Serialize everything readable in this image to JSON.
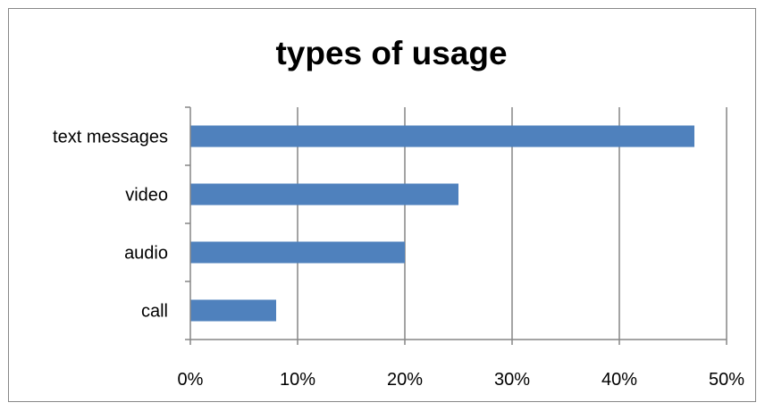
{
  "chart_data": {
    "type": "bar",
    "orientation": "horizontal",
    "title": "types of usage",
    "categories": [
      "text messages",
      "video",
      "audio",
      "call"
    ],
    "values": [
      0.47,
      0.25,
      0.2,
      0.08
    ],
    "xlim": [
      0,
      0.5
    ],
    "xticks": [
      0,
      0.1,
      0.2,
      0.3,
      0.4,
      0.5
    ],
    "xtick_labels": [
      "0%",
      "10%",
      "20%",
      "30%",
      "40%",
      "50%"
    ],
    "xlabel": "",
    "ylabel": "",
    "grid": "vertical major gridlines",
    "legend": "none",
    "colors": {
      "bar": "#4F81BD",
      "grid": "#868686",
      "axis": "#868686",
      "frame": "#888888"
    }
  }
}
